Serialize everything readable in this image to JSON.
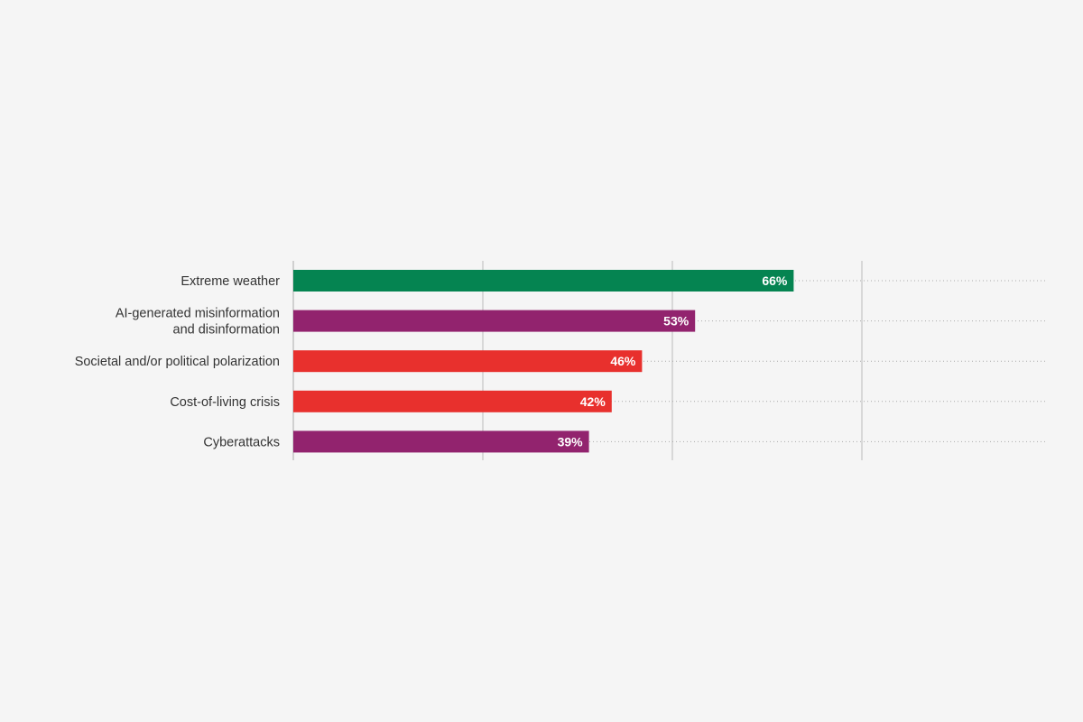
{
  "chart_data": {
    "type": "bar",
    "orientation": "horizontal",
    "categories": [
      [
        "Extreme weather"
      ],
      [
        "AI-generated misinformation",
        "and disinformation"
      ],
      [
        "Societal and/or political polarization"
      ],
      [
        "Cost-of-living crisis"
      ],
      [
        "Cyberattacks"
      ]
    ],
    "values": [
      66,
      53,
      46,
      42,
      39
    ],
    "value_labels": [
      "66%",
      "53%",
      "46%",
      "42%",
      "39%"
    ],
    "bar_colors": [
      "#058451",
      "#92236e",
      "#e8302d",
      "#e8302d",
      "#92236e"
    ],
    "xlim": [
      0,
      100
    ],
    "gridlines_at": [
      0,
      25,
      50,
      75
    ],
    "title": "",
    "xlabel": "",
    "ylabel": "",
    "legend": "none"
  },
  "colors": {
    "background": "#f5f5f5",
    "label_text": "#333333",
    "value_text": "#ffffff",
    "axis": "#aaaaaa",
    "gridline": "#bbbbbb",
    "dotted_guide": "#aaaaaa"
  }
}
